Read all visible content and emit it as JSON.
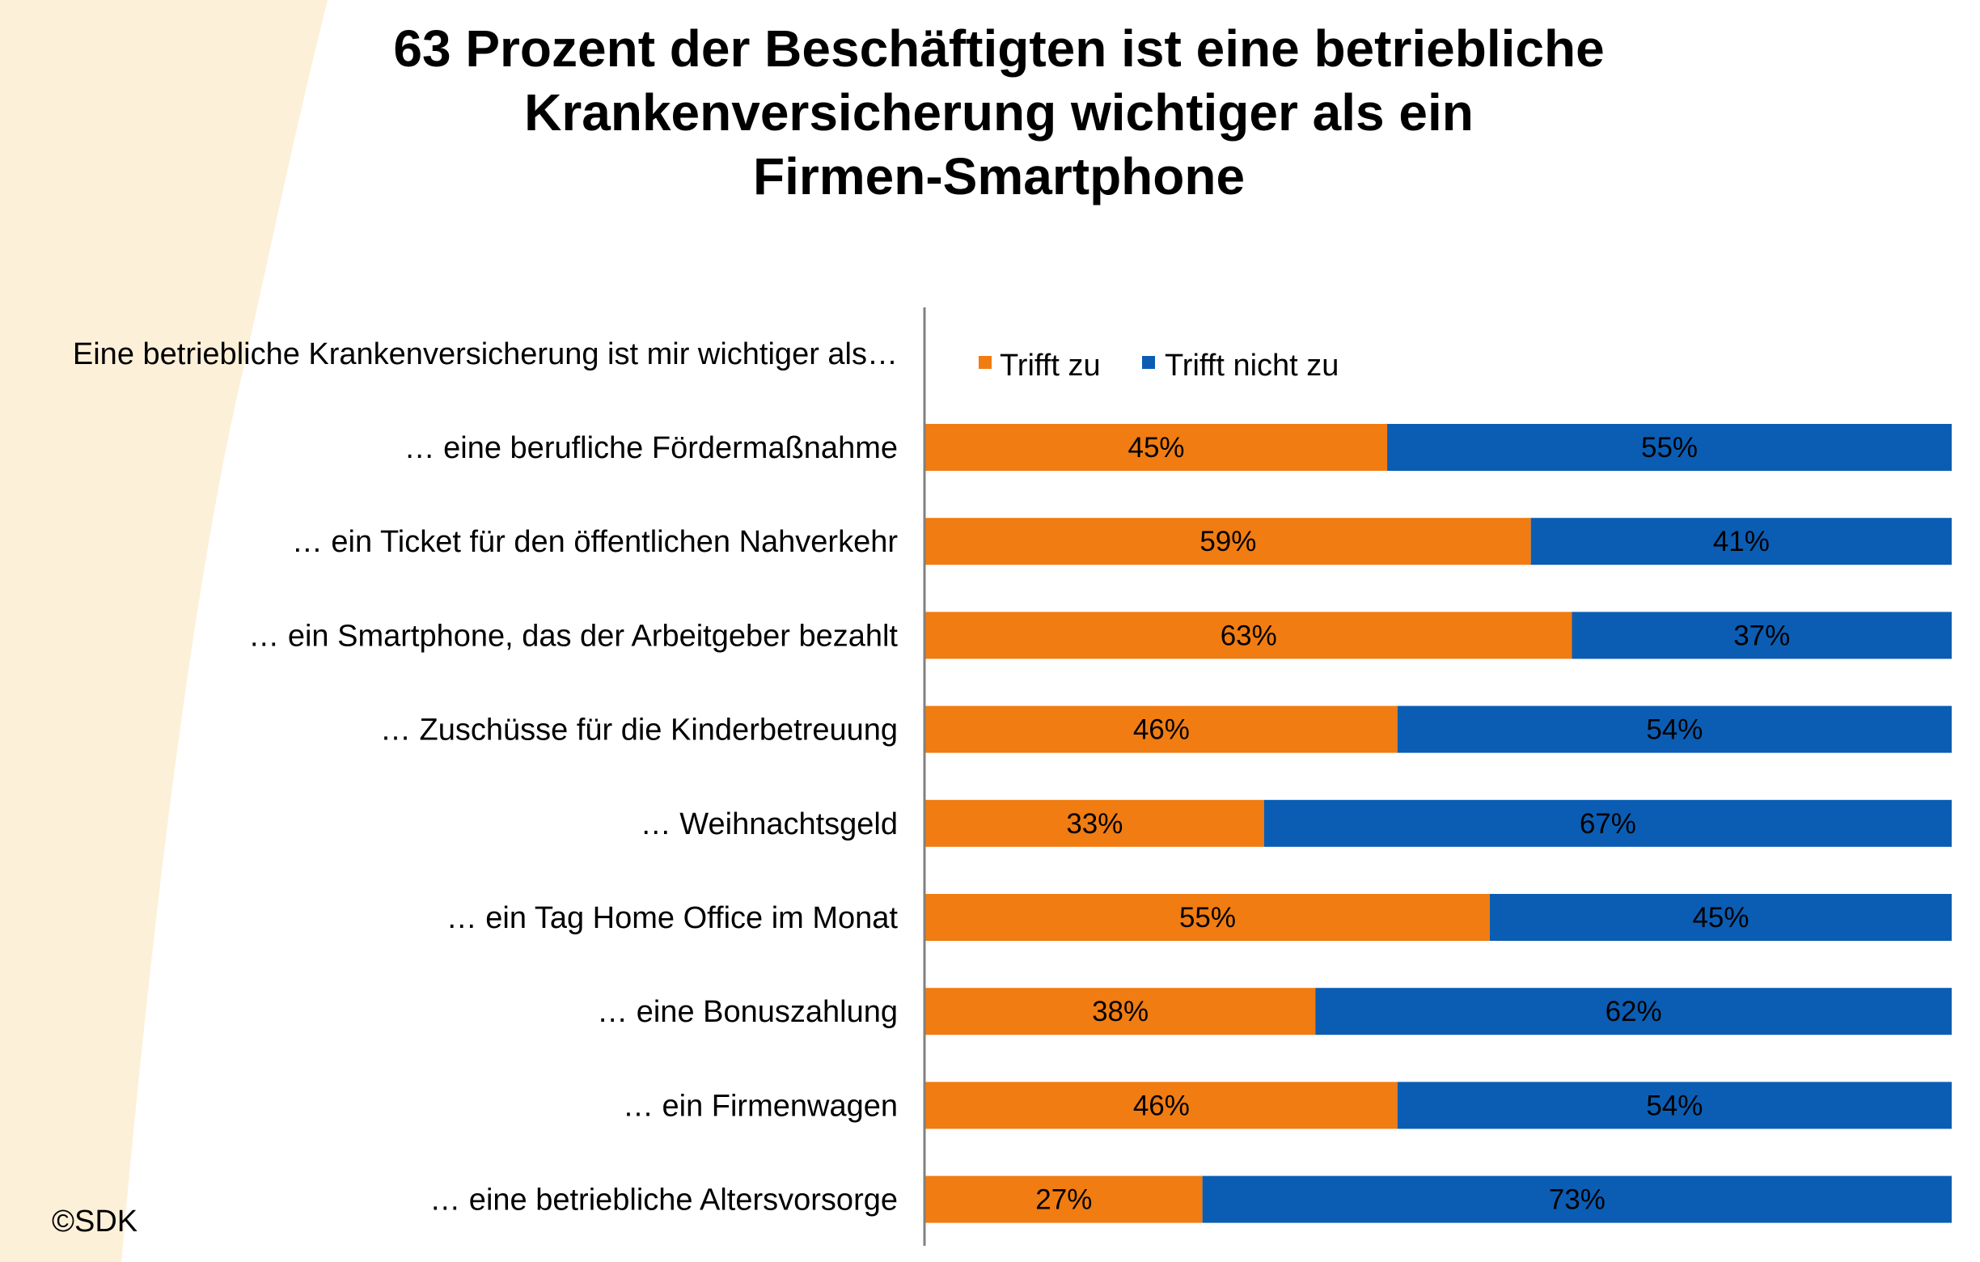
{
  "title_lines": [
    "63 Prozent der Beschäftigten ist eine betriebliche",
    "Krankenversicherung wichtiger als ein",
    "Firmen-Smartphone"
  ],
  "question": "Eine betriebliche Krankenversicherung ist mir wichtiger als…",
  "copyright": "©SDK",
  "colors": {
    "orange": "#F07C12",
    "blue": "#0B5DB3",
    "decor": "#FDF0D9"
  },
  "chart_data": {
    "type": "bar",
    "orientation": "horizontal",
    "stacked": true,
    "percent_stacked": true,
    "categories": [
      "… eine berufliche Fördermaßnahme",
      "… ein Ticket für den öffentlichen Nahverkehr",
      "… ein Smartphone, das der Arbeitgeber bezahlt",
      "… Zuschüsse für die Kinderbetreuung",
      "… Weihnachtsgeld",
      "… ein Tag Home Office im Monat",
      "… eine Bonuszahlung",
      "… ein Firmenwagen",
      "…  eine betriebliche Altersvorsorge"
    ],
    "series": [
      {
        "name": "Trifft zu",
        "color": "#F07C12",
        "values": [
          45,
          59,
          63,
          46,
          33,
          55,
          38,
          46,
          27
        ],
        "labels": [
          "45%",
          "59%",
          "63%",
          "46%",
          "33%",
          "55%",
          "38%",
          "46%",
          "27%"
        ]
      },
      {
        "name": "Trifft nicht zu",
        "color": "#0B5DB3",
        "values": [
          55,
          41,
          37,
          54,
          67,
          45,
          62,
          54,
          73
        ],
        "labels": [
          "55%",
          "41%",
          "37%",
          "54%",
          "67%",
          "45%",
          "62%",
          "54%",
          "73%"
        ]
      }
    ],
    "xlim": [
      0,
      100
    ],
    "legend_position": "top",
    "grid": false
  }
}
